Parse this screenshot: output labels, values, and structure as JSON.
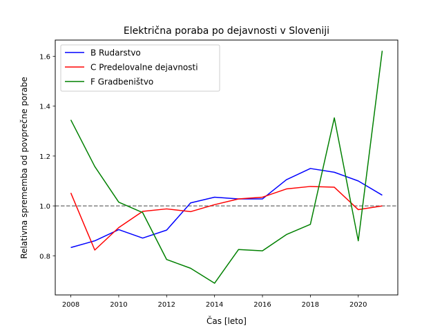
{
  "chart_data": {
    "type": "line",
    "title": "Električna poraba po dejavnosti v Sloveniji",
    "xlabel": "Čas [leto]",
    "ylabel": "Relativna sprememba od povprečne porabe",
    "x": [
      2008,
      2009,
      2010,
      2011,
      2012,
      2013,
      2014,
      2015,
      2016,
      2017,
      2018,
      2019,
      2020,
      2021
    ],
    "xlim": [
      2007.35,
      2021.65
    ],
    "ylim": [
      0.643,
      1.665
    ],
    "xticks": [
      "2008",
      "2010",
      "2012",
      "2014",
      "2016",
      "2018",
      "2020"
    ],
    "yticks": [
      "0.8",
      "1.0",
      "1.2",
      "1.4",
      "1.6"
    ],
    "reference_line": {
      "y": 1.0,
      "style": "dashed",
      "color": "#808080"
    },
    "legend_position": "top-left",
    "grid": false,
    "series": [
      {
        "name": "B Rudarstvo",
        "color": "#0000ff",
        "values": [
          0.833,
          0.86,
          0.905,
          0.871,
          0.903,
          1.012,
          1.035,
          1.028,
          1.028,
          1.105,
          1.15,
          1.135,
          1.1,
          1.043
        ]
      },
      {
        "name": "C Predelovalne dejavnosti",
        "color": "#ff0000",
        "values": [
          1.052,
          0.823,
          0.913,
          0.978,
          0.988,
          0.977,
          1.005,
          1.028,
          1.035,
          1.068,
          1.078,
          1.075,
          0.985,
          1.0
        ]
      },
      {
        "name": "F Gradbeništvo",
        "color": "#008000",
        "values": [
          1.345,
          1.158,
          1.015,
          0.973,
          0.785,
          0.75,
          0.69,
          0.825,
          0.82,
          0.885,
          0.926,
          1.353,
          0.86,
          1.622
        ]
      }
    ]
  }
}
